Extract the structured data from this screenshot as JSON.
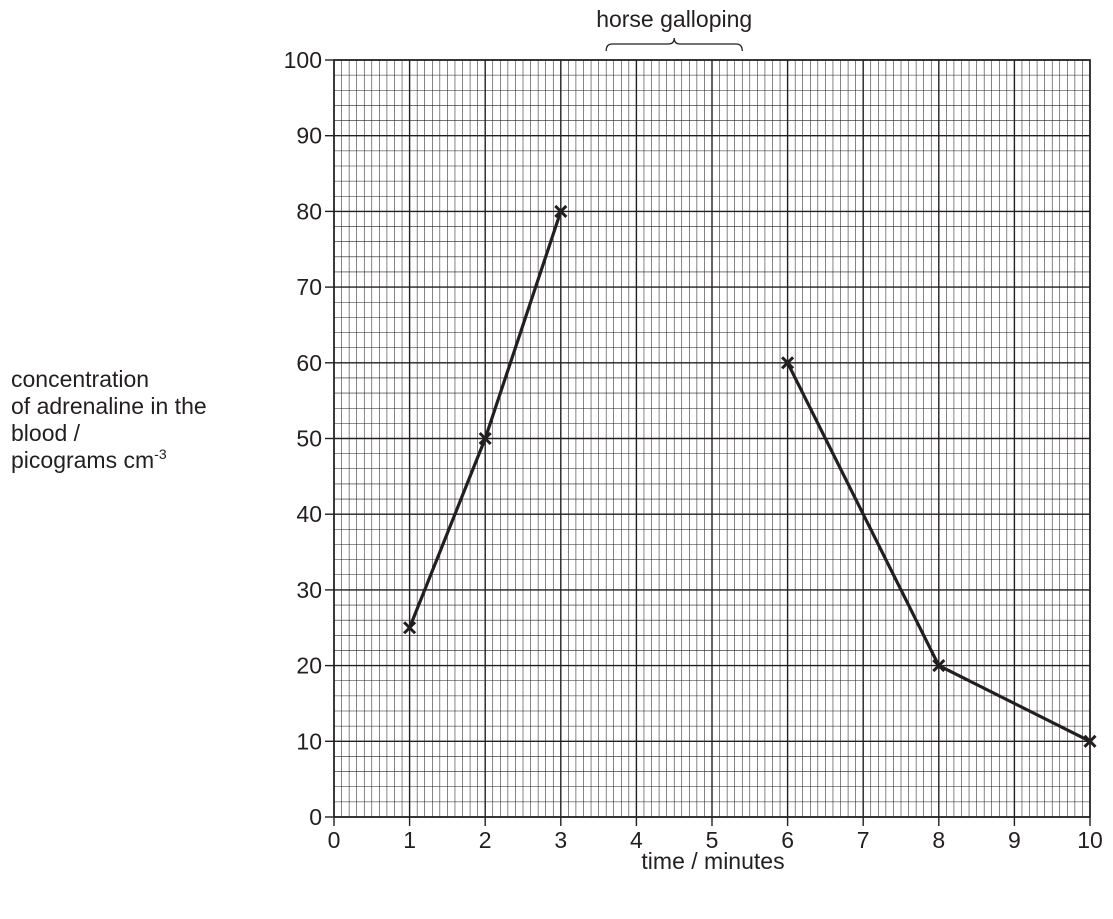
{
  "chart_data": {
    "type": "line",
    "title": "",
    "xlabel": "time / minutes",
    "ylabel_lines": [
      "concentration",
      "of adrenaline in the",
      "blood /"
    ],
    "ylabel_unit": "picograms cm",
    "ylabel_unit_exponent": "-3",
    "xlim": [
      0,
      10
    ],
    "ylim": [
      0,
      100
    ],
    "x_ticks": [
      0,
      1,
      2,
      3,
      4,
      5,
      6,
      7,
      8,
      9,
      10
    ],
    "y_ticks": [
      0,
      10,
      20,
      30,
      40,
      50,
      60,
      70,
      80,
      90,
      100
    ],
    "grid": true,
    "series": [
      {
        "x": [
          1,
          2,
          3
        ],
        "y": [
          25,
          50,
          80
        ]
      },
      {
        "x": [
          6,
          8,
          10
        ],
        "y": [
          60,
          20,
          10
        ]
      }
    ],
    "annotation": {
      "text": "horse galloping",
      "x_start": 3.6,
      "x_end": 5.4
    },
    "colors": {
      "line": "#231f20",
      "grid": "#231f20"
    }
  }
}
